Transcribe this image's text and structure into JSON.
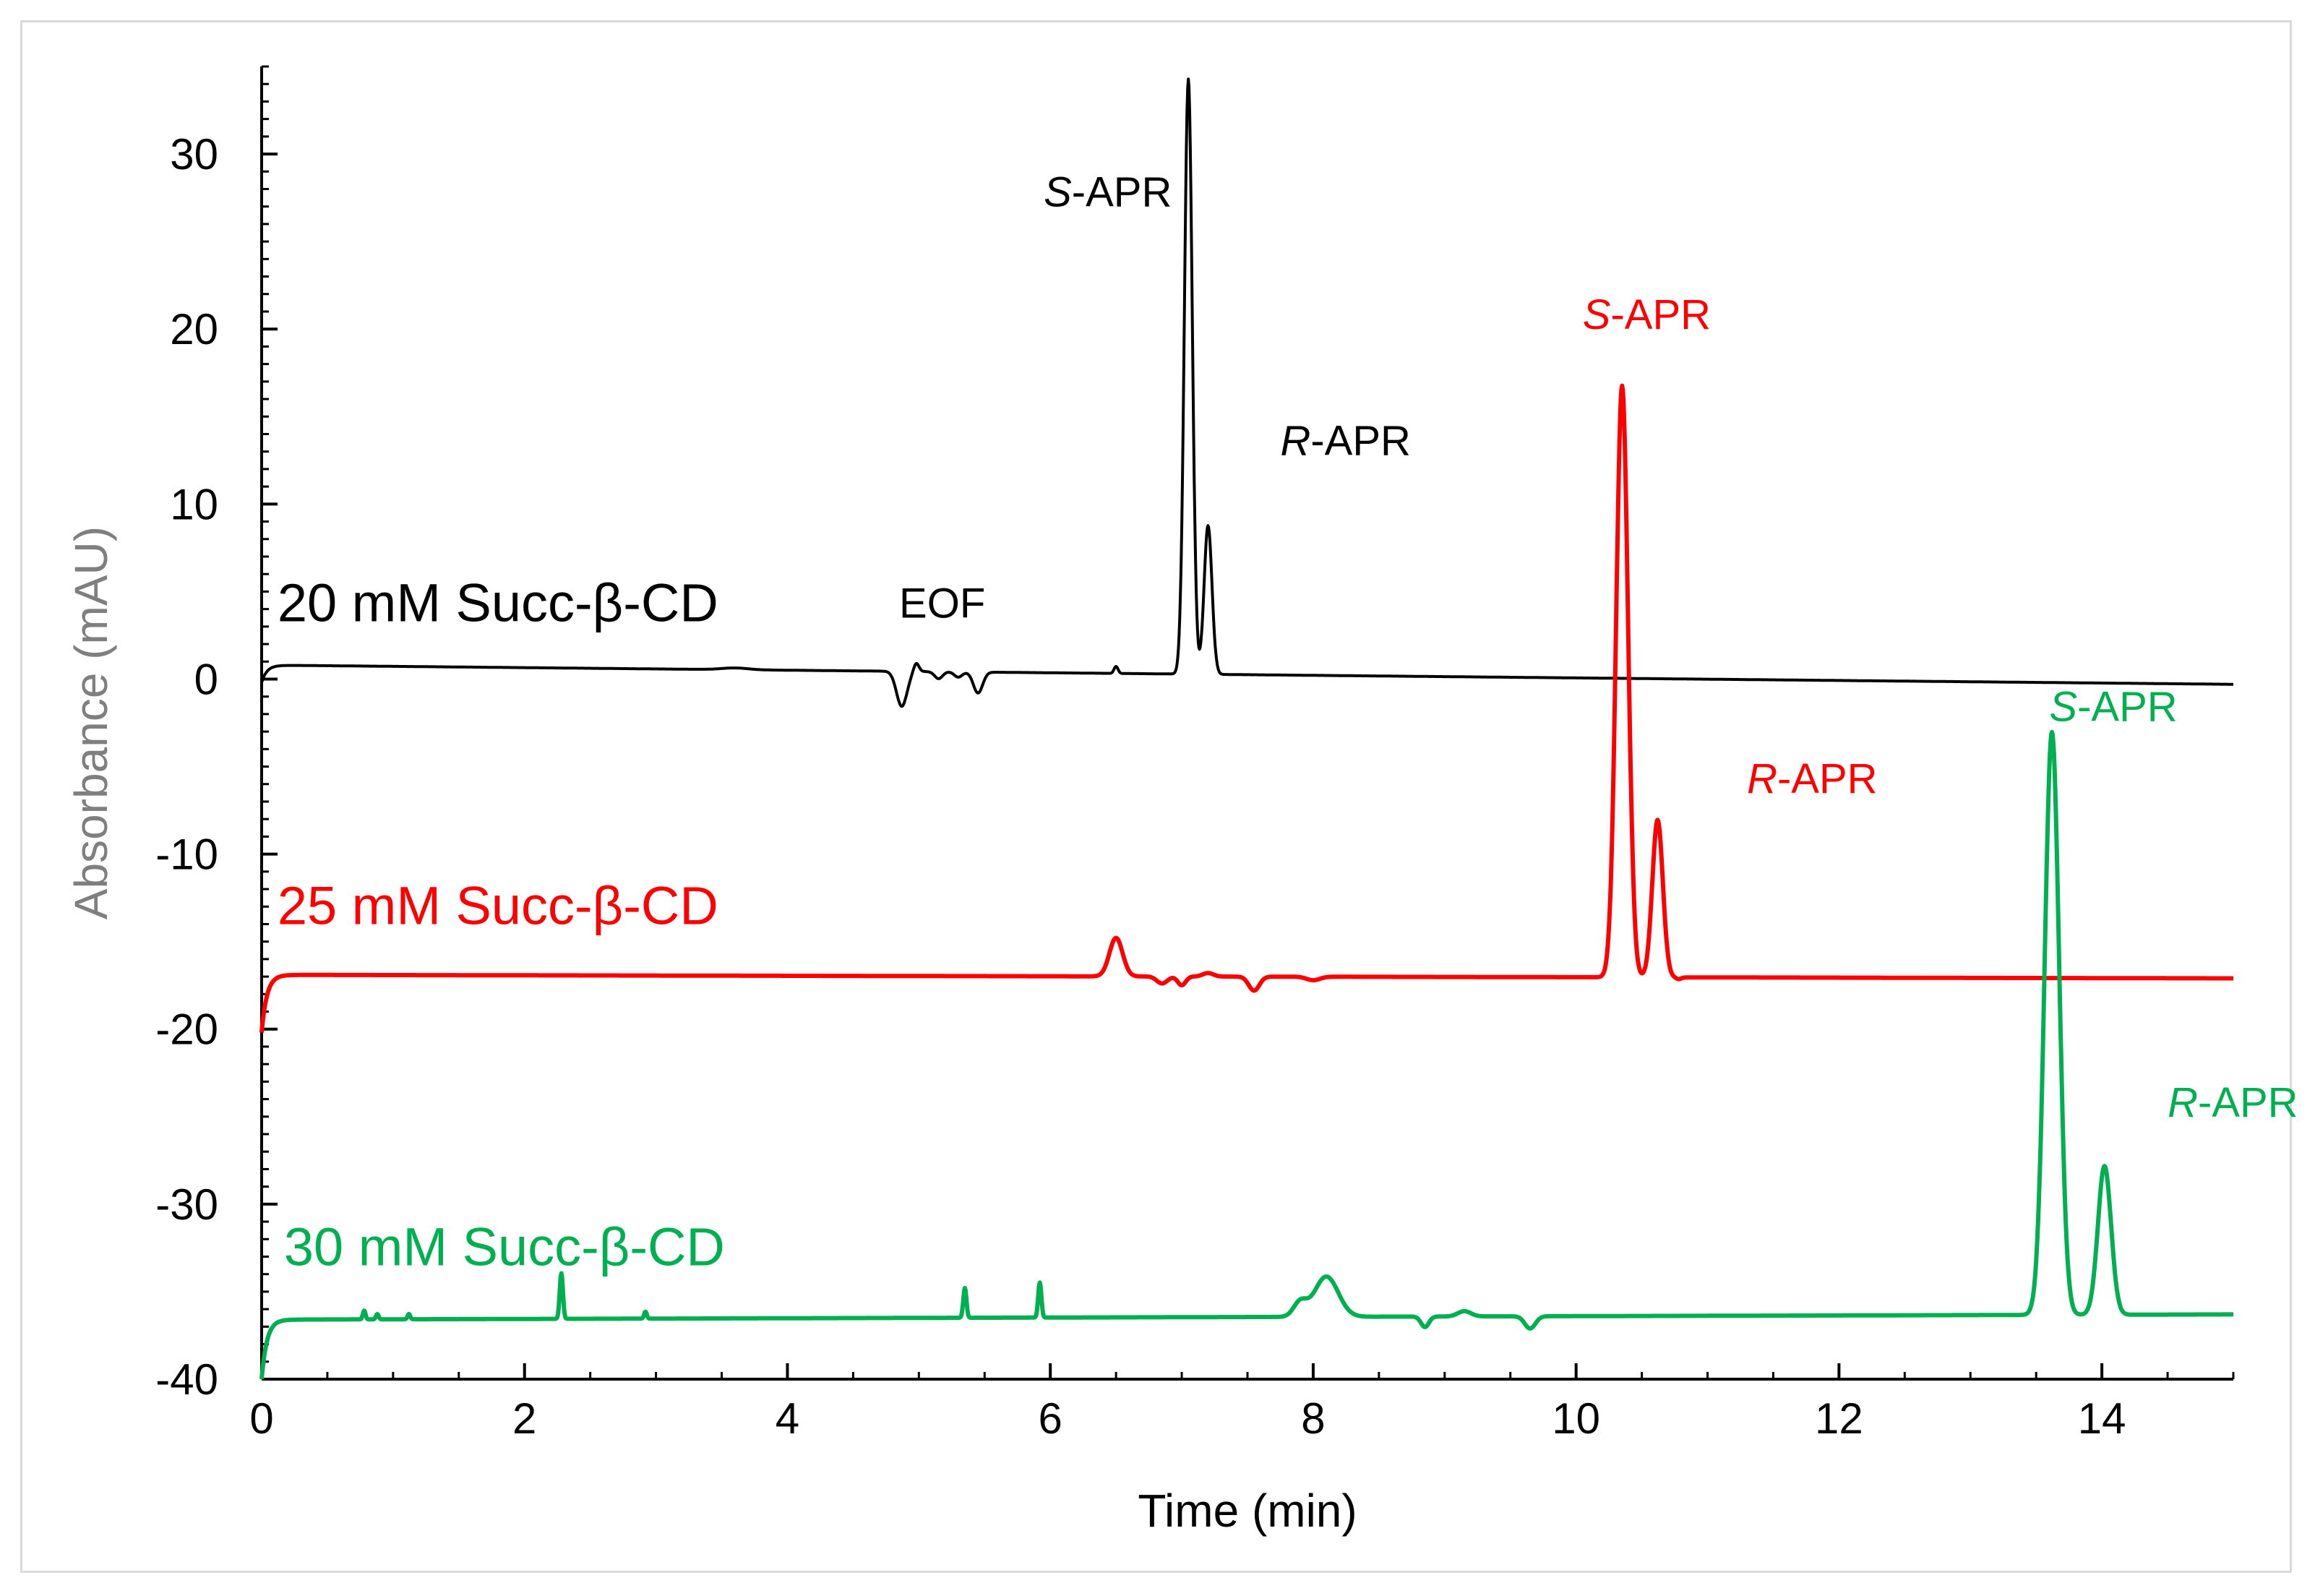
{
  "chart_data": {
    "type": "line",
    "title": "",
    "xlabel": "Time (min)",
    "ylabel": "Absorbance (mAU)",
    "xlim": [
      0,
      15
    ],
    "ylim": [
      -40,
      35
    ],
    "x_ticks": [
      "0",
      "2",
      "4",
      "6",
      "8",
      "10",
      "12",
      "14"
    ],
    "y_ticks": [
      "30",
      "20",
      "10",
      "0",
      "-10",
      "-20",
      "-30",
      "-40"
    ],
    "x_tick_values": [
      0,
      2,
      4,
      6,
      8,
      10,
      12,
      14
    ],
    "y_tick_values": [
      30,
      20,
      10,
      0,
      -10,
      -20,
      -30,
      -40
    ],
    "grid": false,
    "colors": {
      "black": "#000000",
      "red": "#ff0000",
      "green": "#00b050",
      "axis_title": "#7f7f7f"
    },
    "series": [
      {
        "name": "20 mM Succ-β-CD",
        "color": "#000000",
        "baseline": 0.8,
        "baseline_end": -0.3,
        "start_value": -0.2,
        "peaks": [
          {
            "t": 7.05,
            "h": 34.0,
            "w": 0.03
          },
          {
            "t": 7.2,
            "h": 8.5,
            "w": 0.03
          },
          {
            "t": 4.87,
            "h": -2.0,
            "w": 0.04
          },
          {
            "t": 4.98,
            "h": 0.5,
            "w": 0.02
          },
          {
            "t": 5.15,
            "h": -0.4,
            "w": 0.03
          },
          {
            "t": 5.3,
            "h": -0.3,
            "w": 0.03
          },
          {
            "t": 5.45,
            "h": -1.2,
            "w": 0.035
          },
          {
            "t": 6.5,
            "h": 0.4,
            "w": 0.015
          },
          {
            "t": 3.6,
            "h": 0.1,
            "w": 0.1
          }
        ]
      },
      {
        "name": "25 mM Succ-β-CD",
        "color": "#ff0000",
        "baseline": -16.9,
        "baseline_end": -17.1,
        "start_value": -20.2,
        "peaks": [
          {
            "t": 10.35,
            "h": 33.8,
            "w": 0.045
          },
          {
            "t": 10.62,
            "h": 9.0,
            "w": 0.04
          },
          {
            "t": 6.5,
            "h": 2.2,
            "w": 0.05
          },
          {
            "t": 6.85,
            "h": -0.4,
            "w": 0.04
          },
          {
            "t": 7.0,
            "h": -0.5,
            "w": 0.03
          },
          {
            "t": 7.2,
            "h": 0.2,
            "w": 0.04
          },
          {
            "t": 7.55,
            "h": -0.8,
            "w": 0.04
          },
          {
            "t": 8.0,
            "h": -0.2,
            "w": 0.05
          },
          {
            "t": 10.78,
            "h": -0.1,
            "w": 0.02
          }
        ]
      },
      {
        "name": "30 mM Succ-β-CD",
        "color": "#00b050",
        "baseline": -36.6,
        "baseline_end": -36.3,
        "start_value": -40.0,
        "peaks": [
          {
            "t": 13.62,
            "h": 33.3,
            "w": 0.055
          },
          {
            "t": 14.02,
            "h": 8.5,
            "w": 0.05
          },
          {
            "t": 14.05,
            "h": 0,
            "w": 0.05
          },
          {
            "t": 2.28,
            "h": 2.6,
            "w": 0.012
          },
          {
            "t": 5.35,
            "h": 1.7,
            "w": 0.012
          },
          {
            "t": 5.92,
            "h": 2.0,
            "w": 0.012
          },
          {
            "t": 8.1,
            "h": 2.3,
            "w": 0.09
          },
          {
            "t": 7.9,
            "h": 0.8,
            "w": 0.05
          },
          {
            "t": 0.78,
            "h": 0.5,
            "w": 0.01
          },
          {
            "t": 0.88,
            "h": 0.3,
            "w": 0.01
          },
          {
            "t": 1.12,
            "h": 0.3,
            "w": 0.01
          },
          {
            "t": 2.92,
            "h": 0.4,
            "w": 0.01
          },
          {
            "t": 8.85,
            "h": -0.6,
            "w": 0.03
          },
          {
            "t": 9.15,
            "h": 0.3,
            "w": 0.05
          },
          {
            "t": 9.65,
            "h": -0.7,
            "w": 0.04
          }
        ]
      }
    ],
    "trace_labels": [
      {
        "text": "20 mM Succ-β-CD",
        "t": 0.12,
        "v": 3.3,
        "color": "#000000"
      },
      {
        "text": "25 mM Succ-β-CD",
        "t": 0.12,
        "v": -14.0,
        "color": "#ff0000"
      },
      {
        "text": "30 mM Succ-β-CD",
        "t": 0.17,
        "v": -33.5,
        "color": "#00b050"
      }
    ],
    "annotations": [
      {
        "italic": "",
        "rest": "EOF",
        "t": 4.85,
        "v": 3.5,
        "color": "#000000"
      },
      {
        "italic": "S",
        "rest": "-APR",
        "t": 5.95,
        "v": 27.0,
        "color": "#000000"
      },
      {
        "italic": "R",
        "rest": "-APR",
        "t": 7.75,
        "v": 12.8,
        "color": "#000000"
      },
      {
        "italic": "S",
        "rest": "-APR",
        "t": 10.05,
        "v": 20.0,
        "color": "#ff0000"
      },
      {
        "italic": "R",
        "rest": "-APR",
        "t": 11.3,
        "v": -6.5,
        "color": "#ff0000"
      },
      {
        "italic": "S",
        "rest": "-APR",
        "t": 13.6,
        "v": -2.4,
        "color": "#00b050"
      },
      {
        "italic": "R",
        "rest": "-APR",
        "t": 14.5,
        "v": -25.0,
        "color": "#00b050"
      }
    ]
  }
}
